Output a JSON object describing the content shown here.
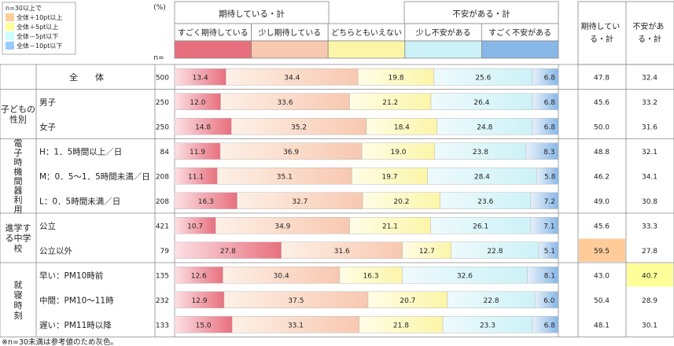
{
  "legend": {
    "title": "n=30以上で",
    "items": [
      {
        "label": "全体＋10pt以上",
        "color": "#FFCC99"
      },
      {
        "label": "全体＋5pt以上",
        "color": "#FFFF99"
      },
      {
        "label": "全体－5pt以下",
        "color": "#CCFFFF"
      },
      {
        "label": "全体－10pt以下",
        "color": "#99CCFF"
      }
    ]
  },
  "header": {
    "percent_label": "(%)",
    "n_label": "n=",
    "group_expect": "期待している・計",
    "group_anxiety": "不安がある・計",
    "cat_labels": [
      "すごく期待している",
      "少し期待している",
      "どちらともいえない",
      "少し不安がある",
      "すごく不安がある"
    ],
    "sum_expect": "期待している・計",
    "sum_anxiety": "不安がある・計"
  },
  "colors": {
    "cat_strong": [
      "#E8707E",
      "#F8C8B0",
      "#FCF5A8",
      "#CCF2F8",
      "#88B8E8"
    ],
    "cat_light": [
      "#FCE0E4",
      "#FDF0E6",
      "#FEFDE6",
      "#EEFAFC",
      "#E6F0FA"
    ],
    "rule": "#888888"
  },
  "chart_data": {
    "type": "bar",
    "stacked": true,
    "orientation": "horizontal",
    "unit": "%",
    "categories": [
      "すごく期待している",
      "少し期待している",
      "どちらともいえない",
      "少し不安がある",
      "すごく不安がある"
    ],
    "rows": [
      {
        "group": "全　　体",
        "label": "",
        "n": "500",
        "values": [
          13.4,
          34.4,
          19.8,
          25.6,
          6.8
        ],
        "sum_expect": "47.8",
        "sum_anxiety": "32.4",
        "hl_expect": "",
        "hl_anxiety": ""
      },
      {
        "group": "子どもの性別",
        "label": "男子",
        "n": "250",
        "values": [
          12.0,
          33.6,
          21.2,
          26.4,
          6.8
        ],
        "sum_expect": "45.6",
        "sum_anxiety": "33.2",
        "hl_expect": "",
        "hl_anxiety": ""
      },
      {
        "group": "子どもの性別",
        "label": "女子",
        "n": "250",
        "values": [
          14.8,
          35.2,
          18.4,
          24.8,
          6.8
        ],
        "sum_expect": "50.0",
        "sum_anxiety": "31.6",
        "hl_expect": "",
        "hl_anxiety": ""
      },
      {
        "group": "電子時機間器利用",
        "label": "H：1．5時間以上／日",
        "n": "84",
        "values": [
          11.9,
          36.9,
          19.0,
          23.8,
          8.3
        ],
        "sum_expect": "48.8",
        "sum_anxiety": "32.1",
        "hl_expect": "",
        "hl_anxiety": ""
      },
      {
        "group": "電子時機間器利用",
        "label": "M：0．5～1．5時間未満／日",
        "n": "208",
        "values": [
          11.1,
          35.1,
          19.7,
          28.4,
          5.8
        ],
        "sum_expect": "46.2",
        "sum_anxiety": "34.1",
        "hl_expect": "",
        "hl_anxiety": ""
      },
      {
        "group": "電子時機間器利用",
        "label": "L：0．5時間未満／日",
        "n": "208",
        "values": [
          16.3,
          32.7,
          20.2,
          23.6,
          7.2
        ],
        "sum_expect": "49.0",
        "sum_anxiety": "30.8",
        "hl_expect": "",
        "hl_anxiety": ""
      },
      {
        "group": "進学する中学校",
        "label": "公立",
        "n": "421",
        "values": [
          10.7,
          34.9,
          21.1,
          26.1,
          7.1
        ],
        "sum_expect": "45.6",
        "sum_anxiety": "33.3",
        "hl_expect": "",
        "hl_anxiety": ""
      },
      {
        "group": "進学する中学校",
        "label": "公立以外",
        "n": "79",
        "values": [
          27.8,
          31.6,
          12.7,
          22.8,
          5.1
        ],
        "sum_expect": "59.5",
        "sum_anxiety": "27.8",
        "hl_expect": "#FFCC99",
        "hl_anxiety": ""
      },
      {
        "group": "就寝時刻",
        "label": "早い：PM10時前",
        "n": "135",
        "values": [
          12.6,
          30.4,
          16.3,
          32.6,
          8.1
        ],
        "sum_expect": "43.0",
        "sum_anxiety": "40.7",
        "hl_expect": "",
        "hl_anxiety": "#FFFF99"
      },
      {
        "group": "就寝時刻",
        "label": "中間：PM10～11時",
        "n": "232",
        "values": [
          12.9,
          37.5,
          20.7,
          22.8,
          6.0
        ],
        "sum_expect": "50.4",
        "sum_anxiety": "28.9",
        "hl_expect": "",
        "hl_anxiety": ""
      },
      {
        "group": "就寝時刻",
        "label": "遅い：PM11時以降",
        "n": "133",
        "values": [
          15.0,
          33.1,
          21.8,
          23.3,
          6.8
        ],
        "sum_expect": "48.1",
        "sum_anxiety": "30.1",
        "hl_expect": "",
        "hl_anxiety": ""
      }
    ],
    "groups": [
      {
        "label": "全　　体",
        "chars": [],
        "rows": [
          0
        ]
      },
      {
        "label": "子どもの性別",
        "chars": [
          "子どもの",
          "性別"
        ],
        "rows": [
          1,
          2
        ]
      },
      {
        "label": "電子時機間器利用",
        "chars": [
          "電",
          "子",
          "時",
          "機",
          "間",
          "器",
          "利",
          "用"
        ],
        "rows": [
          3,
          4,
          5
        ]
      },
      {
        "label": "進学する中学校",
        "chars": [
          "進学す",
          "る中学",
          "校"
        ],
        "rows": [
          6,
          7
        ]
      },
      {
        "label": "就寝時刻",
        "chars": [
          "就",
          "寝",
          "時",
          "刻"
        ],
        "rows": [
          8,
          9,
          10
        ]
      }
    ]
  },
  "footnote": "※n=30未満は参考値のため灰色。"
}
